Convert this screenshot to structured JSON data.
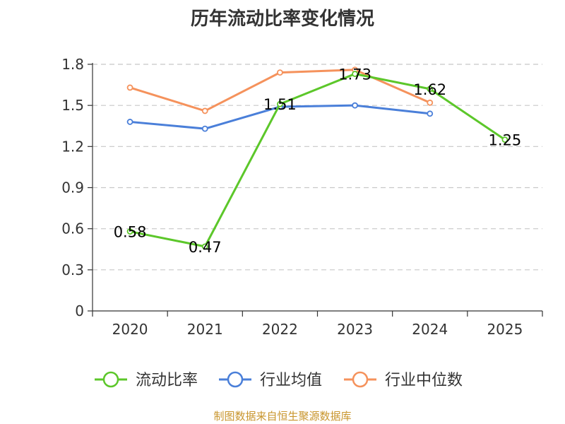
{
  "chart_data": {
    "type": "line",
    "title": "历年流动比率变化情况",
    "categories": [
      "2020",
      "2021",
      "2022",
      "2023",
      "2024",
      "2025"
    ],
    "ylim": [
      0,
      1.8
    ],
    "yticks": [
      0,
      0.3,
      0.6,
      0.9,
      1.2,
      1.5,
      1.8
    ],
    "ytick_labels": [
      "0",
      "0.3",
      "0.6",
      "0.9",
      "1.2",
      "1.5",
      "1.8"
    ],
    "grid": true,
    "legend_position": "bottom",
    "series": [
      {
        "name": "流动比率",
        "color": "#5cc72a",
        "values": [
          0.58,
          0.47,
          1.51,
          1.73,
          1.62,
          1.25
        ],
        "labels": [
          "0.58",
          "0.47",
          "1.51",
          "1.73",
          "1.62",
          "1.25"
        ]
      },
      {
        "name": "行业均值",
        "color": "#4a7fd9",
        "values": [
          1.38,
          1.33,
          1.49,
          1.5,
          1.44,
          null
        ]
      },
      {
        "name": "行业中位数",
        "color": "#f5925c",
        "values": [
          1.63,
          1.46,
          1.74,
          1.76,
          1.52,
          null
        ]
      }
    ]
  },
  "source_text": "制图数据来自恒生聚源数据库"
}
